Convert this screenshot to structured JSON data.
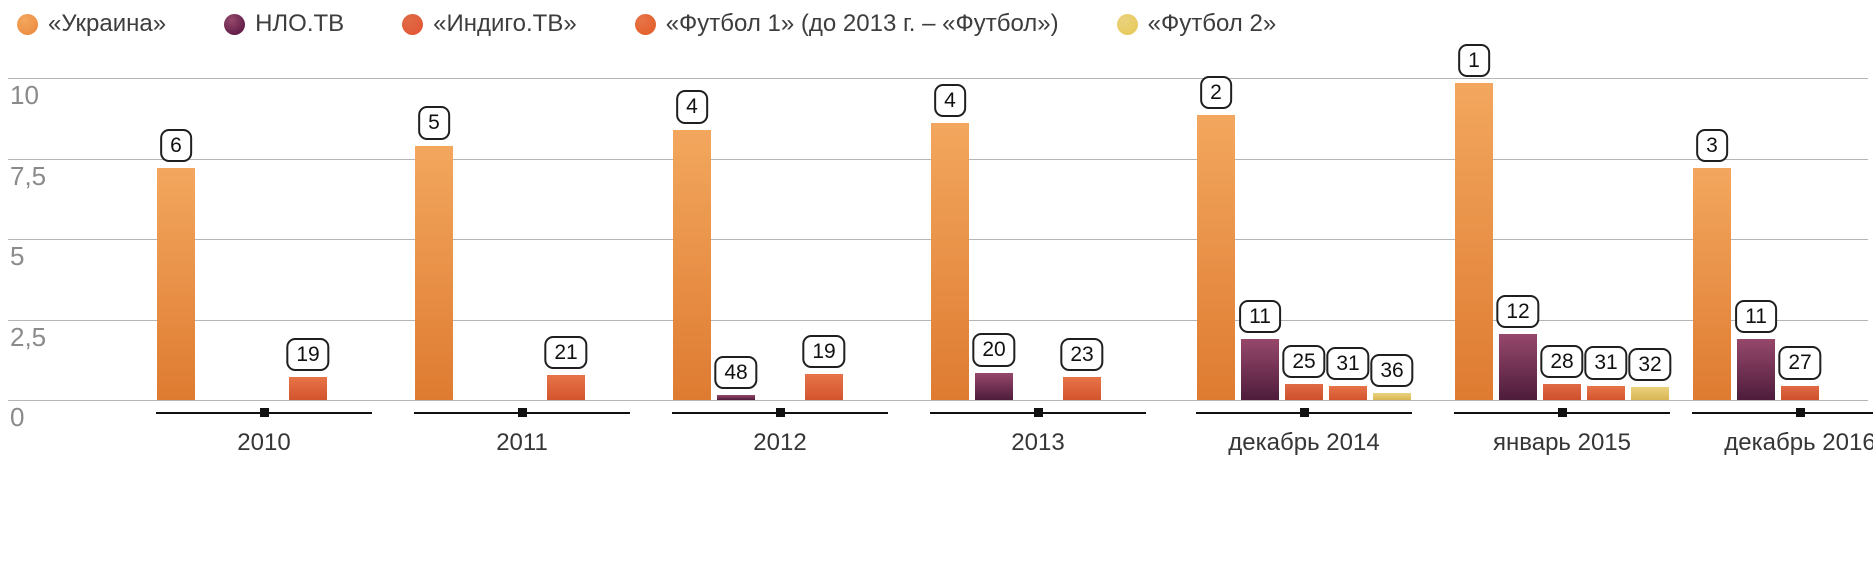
{
  "chart_data": {
    "type": "bar",
    "title": "",
    "xlabel": "",
    "ylabel": "",
    "legend_position": "top-left",
    "y_axis": {
      "min": 0,
      "max": 10,
      "grid": true,
      "ticks": [
        "10",
        "7,5",
        "5",
        "2,5",
        "0"
      ],
      "tick_values": [
        10,
        7.5,
        5,
        2.5,
        0
      ]
    },
    "series": [
      {
        "name": "«Украина»",
        "legend_color": "#ED9045",
        "color_top": "#F3A75E",
        "color_bottom": "#DE7B31"
      },
      {
        "name": "НЛО.ТВ",
        "legend_color": "#65204A",
        "color_top": "#96486B",
        "color_bottom": "#4E1C3B"
      },
      {
        "name": "«Индиго.ТВ»",
        "legend_color": "#E25A38",
        "color_top": "#E06A45",
        "color_bottom": "#CE4F2C"
      },
      {
        "name": "«Футбол 1» (до 2013 г. – «Футбол»)",
        "legend_color": "#E4622F",
        "color_top": "#E77448",
        "color_bottom": "#D3542D"
      },
      {
        "name": "«Футбол 2»",
        "legend_color": "#E7CB5F",
        "color_top": "#EAD27E",
        "color_bottom": "#D9B654"
      }
    ],
    "categories": [
      {
        "label": "2010",
        "bars": [
          {
            "series": 0,
            "value": 7.2,
            "rank": "6"
          },
          {
            "series": 3,
            "value": 0.7,
            "rank": "19"
          }
        ]
      },
      {
        "label": "2011",
        "bars": [
          {
            "series": 0,
            "value": 7.9,
            "rank": "5"
          },
          {
            "series": 3,
            "value": 0.78,
            "rank": "21"
          }
        ]
      },
      {
        "label": "2012",
        "bars": [
          {
            "series": 0,
            "value": 8.4,
            "rank": "4"
          },
          {
            "series": 1,
            "value": 0.15,
            "rank": "48"
          },
          {
            "series": 3,
            "value": 0.8,
            "rank": "19"
          }
        ]
      },
      {
        "label": "2013",
        "bars": [
          {
            "series": 0,
            "value": 8.6,
            "rank": "4"
          },
          {
            "series": 1,
            "value": 0.85,
            "rank": "20"
          },
          {
            "series": 3,
            "value": 0.7,
            "rank": "23"
          }
        ]
      },
      {
        "label": "декабрь 2014",
        "bars": [
          {
            "series": 0,
            "value": 8.85,
            "rank": "2"
          },
          {
            "series": 1,
            "value": 1.9,
            "rank": "11"
          },
          {
            "series": 2,
            "value": 0.5,
            "rank": "25"
          },
          {
            "series": 3,
            "value": 0.42,
            "rank": "31"
          },
          {
            "series": 4,
            "value": 0.22,
            "rank": "36"
          }
        ]
      },
      {
        "label": "январь 2015",
        "bars": [
          {
            "series": 0,
            "value": 9.85,
            "rank": "1"
          },
          {
            "series": 1,
            "value": 2.05,
            "rank": "12"
          },
          {
            "series": 2,
            "value": 0.5,
            "rank": "28"
          },
          {
            "series": 3,
            "value": 0.45,
            "rank": "31"
          },
          {
            "series": 4,
            "value": 0.4,
            "rank": "32"
          }
        ]
      },
      {
        "label": "декабрь 2016",
        "bars": [
          {
            "series": 0,
            "value": 7.2,
            "rank": "3"
          },
          {
            "series": 1,
            "value": 1.9,
            "rank": "11"
          },
          {
            "series": 2,
            "value": 0.45,
            "rank": "27"
          }
        ]
      }
    ]
  }
}
